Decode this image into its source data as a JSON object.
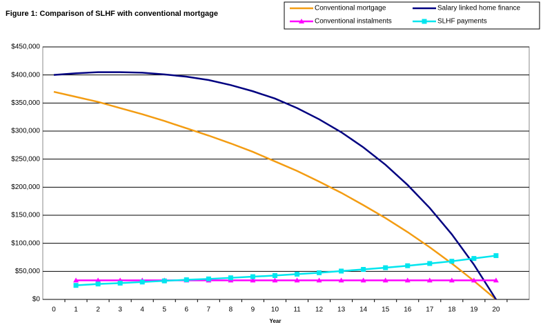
{
  "chart_data": {
    "type": "line",
    "title": "Figure 1: Comparison of SLHF with conventional mortgage",
    "x_label": "Year",
    "x": [
      0,
      1,
      2,
      3,
      4,
      5,
      6,
      7,
      8,
      9,
      10,
      11,
      12,
      13,
      14,
      15,
      16,
      17,
      18,
      19,
      20
    ],
    "series": [
      {
        "name": "Conventional mortgage",
        "color": "#f39c12",
        "marker": "none",
        "values": [
          370000,
          361000,
          352000,
          341000,
          330000,
          318000,
          305000,
          292000,
          278000,
          263000,
          246000,
          229000,
          210000,
          190000,
          168000,
          145000,
          120000,
          93000,
          64000,
          33000,
          0
        ]
      },
      {
        "name": "Salary linked home finance",
        "color": "#000080",
        "marker": "none",
        "values": [
          400000,
          403000,
          405000,
          405000,
          404000,
          401000,
          397000,
          391000,
          382000,
          371000,
          358000,
          341000,
          321000,
          298000,
          271000,
          240000,
          204000,
          163000,
          116000,
          62000,
          0
        ]
      },
      {
        "name": "Conventional instalments",
        "color": "#ff00ff",
        "marker": "triangle",
        "values": [
          null,
          34000,
          34000,
          34000,
          34000,
          34000,
          34000,
          34000,
          34000,
          34000,
          34000,
          34000,
          34000,
          34000,
          34000,
          34000,
          34000,
          34000,
          34000,
          34000,
          34000
        ]
      },
      {
        "name": "SLHF payments",
        "color": "#00e5ee",
        "marker": "square",
        "values": [
          null,
          25000,
          27500,
          29000,
          31000,
          33000,
          35000,
          36500,
          38500,
          40500,
          42500,
          45000,
          47500,
          50500,
          53500,
          56500,
          60000,
          64000,
          68000,
          73000,
          78000
        ]
      }
    ],
    "xlim": [
      -0.5,
      21.5
    ],
    "xticks": [
      0,
      1,
      2,
      3,
      4,
      5,
      6,
      7,
      8,
      9,
      10,
      11,
      12,
      13,
      14,
      15,
      16,
      17,
      18,
      19,
      20
    ],
    "ylim": [
      0,
      450000
    ],
    "yticks": [
      {
        "value": 0,
        "label": "$0"
      },
      {
        "value": 50000,
        "label": "$50,000"
      },
      {
        "value": 100000,
        "label": "$100,000"
      },
      {
        "value": 150000,
        "label": "$150,000"
      },
      {
        "value": 200000,
        "label": "$200,000"
      },
      {
        "value": 250000,
        "label": "$250,000"
      },
      {
        "value": 300000,
        "label": "$300,000"
      },
      {
        "value": 350000,
        "label": "$350,000"
      },
      {
        "value": 400000,
        "label": "$400,000"
      },
      {
        "value": 450000,
        "label": "$450,000"
      }
    ],
    "grid": true
  }
}
